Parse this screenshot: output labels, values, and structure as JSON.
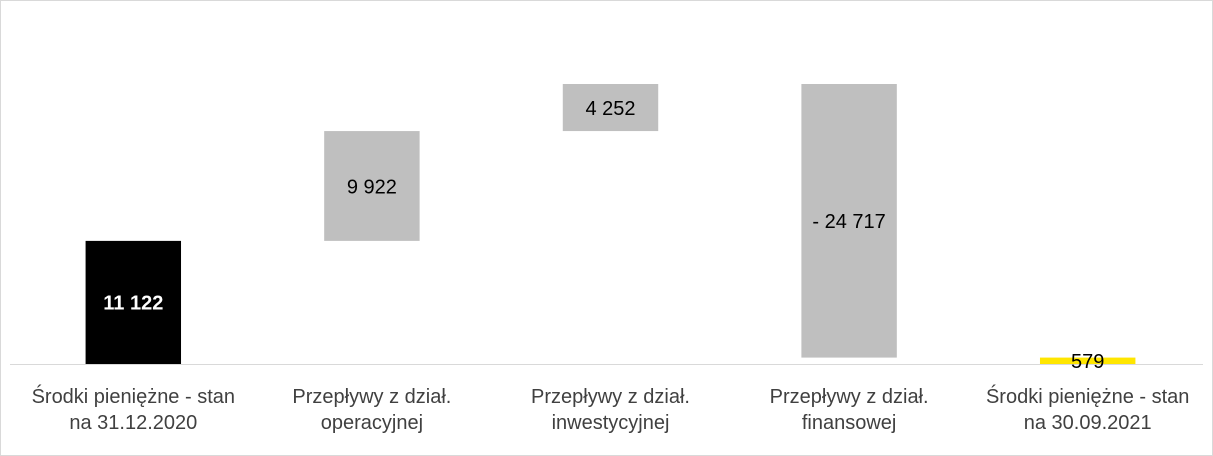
{
  "chart_data": {
    "type": "waterfall",
    "categories": [
      "Środki pieniężne - stan na 31.12.2020",
      "Przepływy z dział. operacyjnej",
      "Przepływy z dział. inwestycyjnej",
      "Przepływy z dział. finansowej",
      "Środki pieniężne - stan na 30.09.2021"
    ],
    "values": [
      11122,
      9922,
      4252,
      -24717,
      579
    ],
    "value_labels": [
      "11 122",
      "9 922",
      "4 252",
      "- 24 717",
      "579"
    ],
    "totals": [
      true,
      false,
      false,
      false,
      true
    ],
    "colors": [
      "#000000",
      "#bfbfbf",
      "#bfbfbf",
      "#bfbfbf",
      "#ffe600"
    ]
  }
}
